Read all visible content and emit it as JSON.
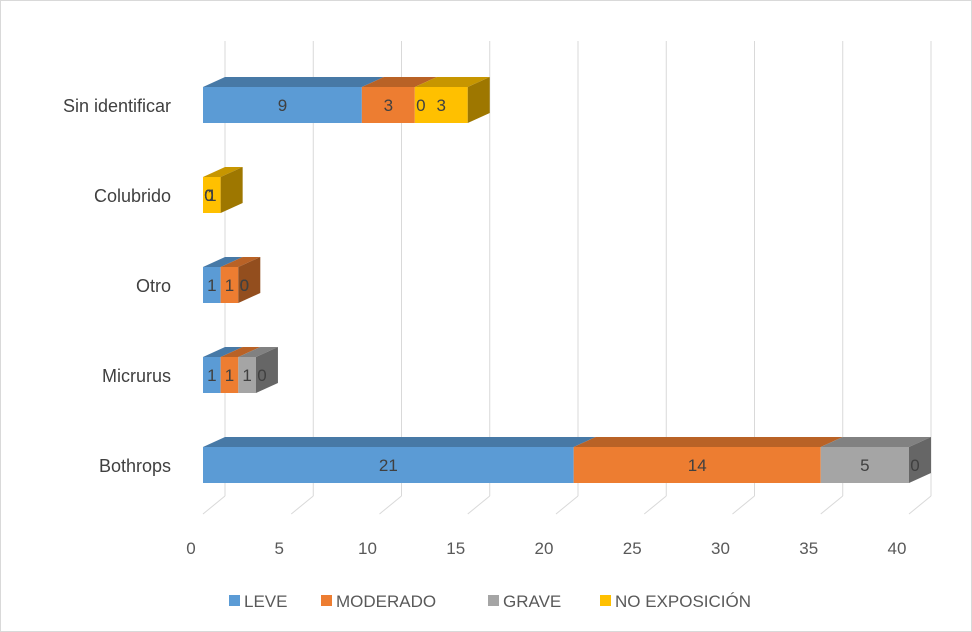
{
  "chart_data": {
    "type": "bar",
    "orientation": "horizontal",
    "style": "stacked-3d",
    "title": "",
    "xlabel": "",
    "ylabel": "",
    "categories": [
      "Bothrops",
      "Micrurus",
      "Otro",
      "Colubrido",
      "Sin identificar"
    ],
    "series": [
      {
        "name": "LEVE",
        "color": "#5B9BD5",
        "values": [
          21,
          1,
          1,
          0,
          9
        ]
      },
      {
        "name": "MODERADO",
        "color": "#ED7D31",
        "values": [
          14,
          1,
          1,
          0,
          3
        ]
      },
      {
        "name": "GRAVE",
        "color": "#A5A5A5",
        "values": [
          5,
          1,
          0,
          0,
          0
        ]
      },
      {
        "name": "NO EXPOSICIÓN",
        "color": "#FFC000",
        "values": [
          0,
          0,
          0,
          1,
          3
        ]
      }
    ],
    "xlim": [
      0,
      40
    ],
    "xticks": [
      "0",
      "5",
      "10",
      "15",
      "20",
      "25",
      "30",
      "35",
      "40"
    ],
    "grid": true,
    "legend_position": "bottom"
  }
}
